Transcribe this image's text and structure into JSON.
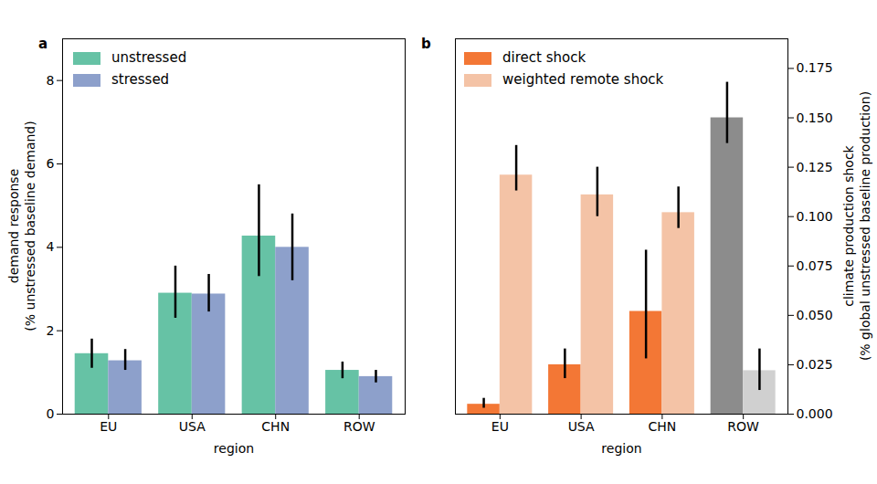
{
  "chart_data": [
    {
      "type": "bar",
      "title": "a",
      "xlabel": "region",
      "ylabel": "demand response\n(% unstressed baseline demand)",
      "categories": [
        "EU",
        "USA",
        "CHN",
        "ROW"
      ],
      "series": [
        {
          "name": "unstressed",
          "color": "#66c2a5",
          "values": [
            1.45,
            2.9,
            4.27,
            1.05
          ],
          "error_low": [
            1.1,
            2.3,
            3.3,
            0.85
          ],
          "error_high": [
            1.8,
            3.55,
            5.5,
            1.25
          ]
        },
        {
          "name": "stressed",
          "color": "#8da0cb",
          "values": [
            1.28,
            2.88,
            4.0,
            0.9
          ],
          "error_low": [
            1.05,
            2.45,
            3.2,
            0.75
          ],
          "error_high": [
            1.55,
            3.35,
            4.8,
            1.05
          ]
        }
      ],
      "ylim": [
        0,
        9
      ],
      "yticks": [
        0,
        2,
        4,
        6,
        8
      ],
      "grid": false,
      "legend": "upper left"
    },
    {
      "type": "bar",
      "title": "b",
      "xlabel": "region",
      "ylabel": "climate production shock\n(% global unstressed baseline production)",
      "categories": [
        "EU",
        "USA",
        "CHN",
        "ROW"
      ],
      "series": [
        {
          "name": "direct shock",
          "color": "#f37735",
          "colors": [
            "#f37735",
            "#f37735",
            "#f37735",
            "#8c8c8c"
          ],
          "values": [
            0.005,
            0.025,
            0.052,
            0.15
          ],
          "error_low": [
            0.003,
            0.018,
            0.028,
            0.137
          ],
          "error_high": [
            0.008,
            0.033,
            0.083,
            0.168
          ]
        },
        {
          "name": "weighted remote shock",
          "color": "#f4c3a6",
          "colors": [
            "#f4c3a6",
            "#f4c3a6",
            "#f4c3a6",
            "#d0d0d0"
          ],
          "values": [
            0.121,
            0.111,
            0.102,
            0.022
          ],
          "error_low": [
            0.113,
            0.1,
            0.094,
            0.012
          ],
          "error_high": [
            0.136,
            0.125,
            0.115,
            0.033
          ]
        }
      ],
      "ylim": [
        0,
        0.19
      ],
      "yticks": [
        {
          "value": 0,
          "label": "0.000"
        },
        {
          "value": 0.025,
          "label": "0.025"
        },
        {
          "value": 0.05,
          "label": "0.050"
        },
        {
          "value": 0.075,
          "label": "0.075"
        },
        {
          "value": 0.1,
          "label": "0.100"
        },
        {
          "value": 0.125,
          "label": "0.125"
        },
        {
          "value": 0.15,
          "label": "0.150"
        },
        {
          "value": 0.175,
          "label": "0.175"
        }
      ],
      "grid": false,
      "legend": "upper left"
    }
  ]
}
